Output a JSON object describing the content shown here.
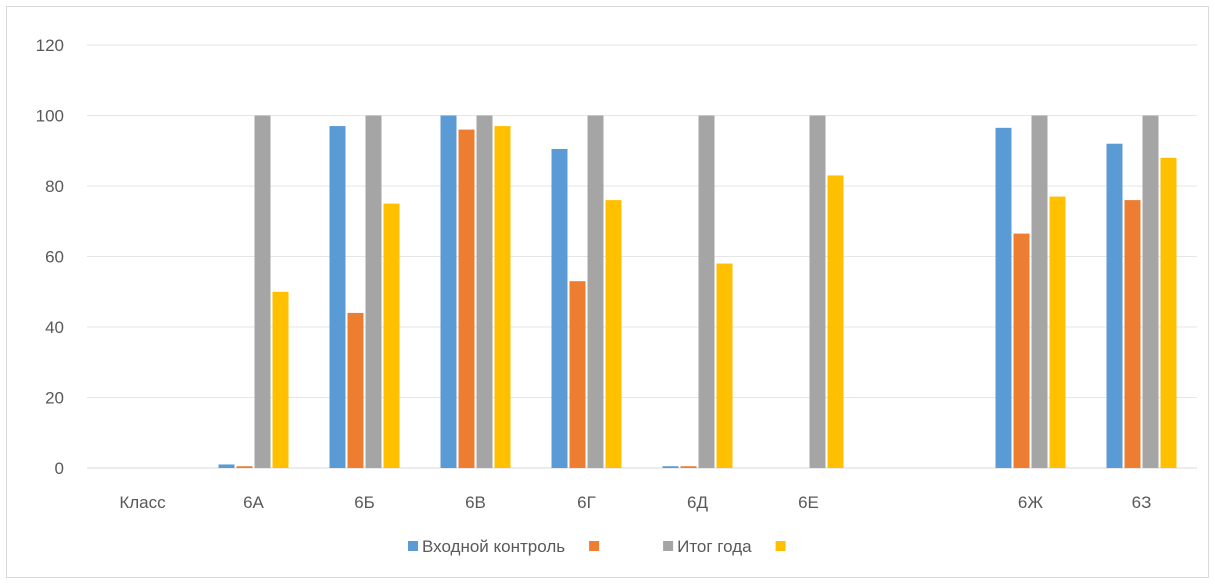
{
  "chart_data": {
    "type": "bar",
    "categories": [
      "Класс",
      "6А",
      "6Б",
      "6В",
      "6Г",
      "6Д",
      "6Е",
      "",
      "6Ж",
      "6З"
    ],
    "series": [
      {
        "name": "Входной контроль",
        "color": "#5b9bd5",
        "values": [
          0,
          1,
          97,
          100,
          90.5,
          0.5,
          0,
          0,
          96.5,
          92
        ]
      },
      {
        "name": "",
        "color": "#ed7d31",
        "values": [
          0,
          0.5,
          44,
          96,
          53,
          0.5,
          0,
          0,
          66.5,
          76
        ]
      },
      {
        "name": "Итог года",
        "color": "#a5a5a5",
        "values": [
          0,
          100,
          100,
          100,
          100,
          100,
          100,
          0,
          100,
          100
        ]
      },
      {
        "name": "",
        "color": "#ffc000",
        "values": [
          0,
          50,
          75,
          97,
          76,
          58,
          83,
          0,
          77,
          88
        ]
      }
    ],
    "ylim": [
      0,
      120
    ],
    "yticks": [
      "0",
      "20",
      "40",
      "60",
      "80",
      "100",
      "120"
    ],
    "grid": true,
    "legend_position": "bottom",
    "title": "",
    "xlabel": "",
    "ylabel": ""
  }
}
